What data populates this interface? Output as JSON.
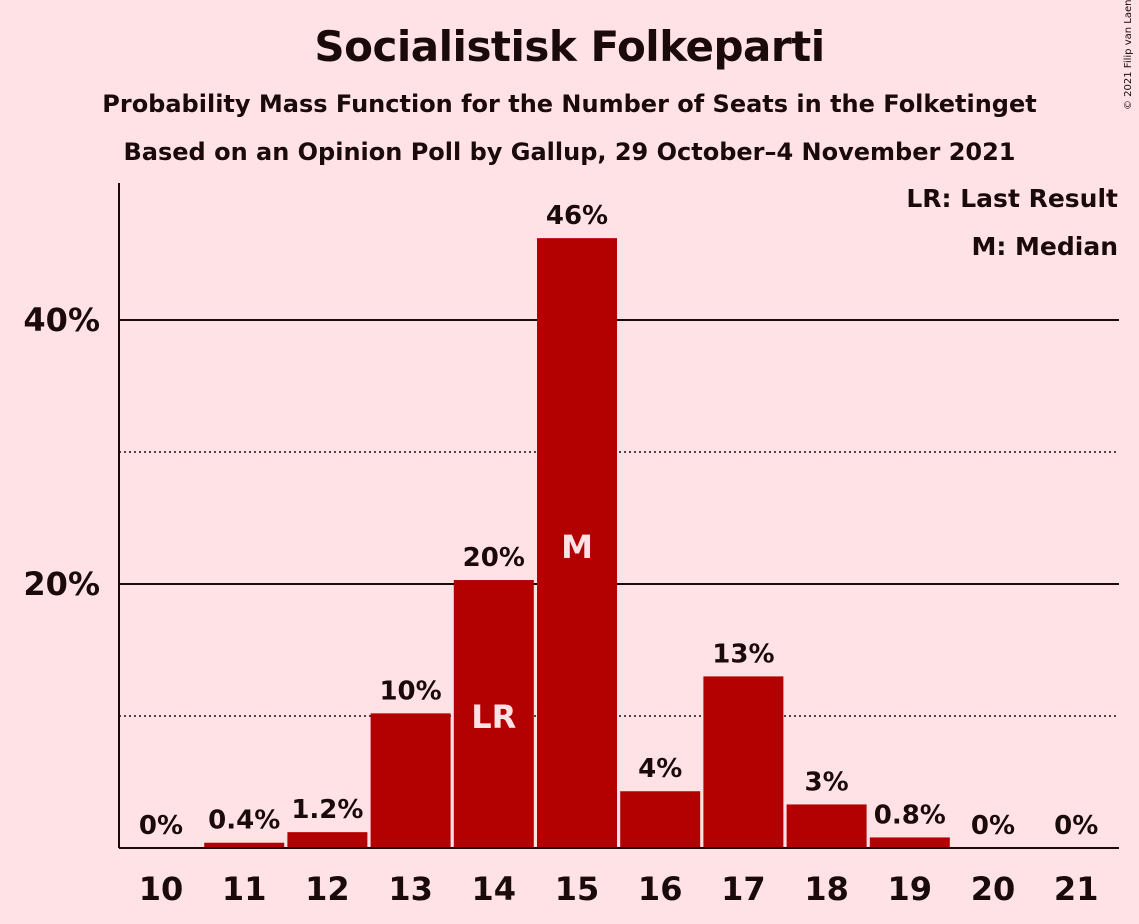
{
  "title": "Socialistisk Folkeparti",
  "subtitle1": "Probability Mass Function for the Number of Seats in the Folketinget",
  "subtitle2": "Based on an Opinion Poll by Gallup, 29 October–4 November 2021",
  "copyright": "© 2021 Filip van Laenen",
  "legend": {
    "last_result": "LR: Last Result",
    "median": "M: Median"
  },
  "colors": {
    "bar": "#B30000",
    "background": "#FFE2E6",
    "text": "#1a0a0a"
  },
  "chart_data": {
    "type": "bar",
    "categories": [
      "10",
      "11",
      "12",
      "13",
      "14",
      "15",
      "16",
      "17",
      "18",
      "19",
      "20",
      "21"
    ],
    "values": [
      0,
      0.4,
      1.2,
      10.2,
      20.3,
      46.2,
      4.3,
      13.0,
      3.3,
      0.8,
      0,
      0
    ],
    "data_labels": [
      "0%",
      "0.4%",
      "1.2%",
      "10%",
      "20%",
      "46%",
      "4%",
      "13%",
      "3%",
      "0.8%",
      "0%",
      "0%"
    ],
    "bar_markers": {
      "14": "LR",
      "15": "M"
    },
    "y_ticks": [
      {
        "value": 20,
        "label": "20%"
      },
      {
        "value": 40,
        "label": "40%"
      }
    ],
    "minor_gridlines": [
      10,
      30
    ],
    "ylim": [
      0,
      50
    ],
    "xlabel": "",
    "ylabel": "",
    "grid": true,
    "legend_position": "top-right"
  }
}
